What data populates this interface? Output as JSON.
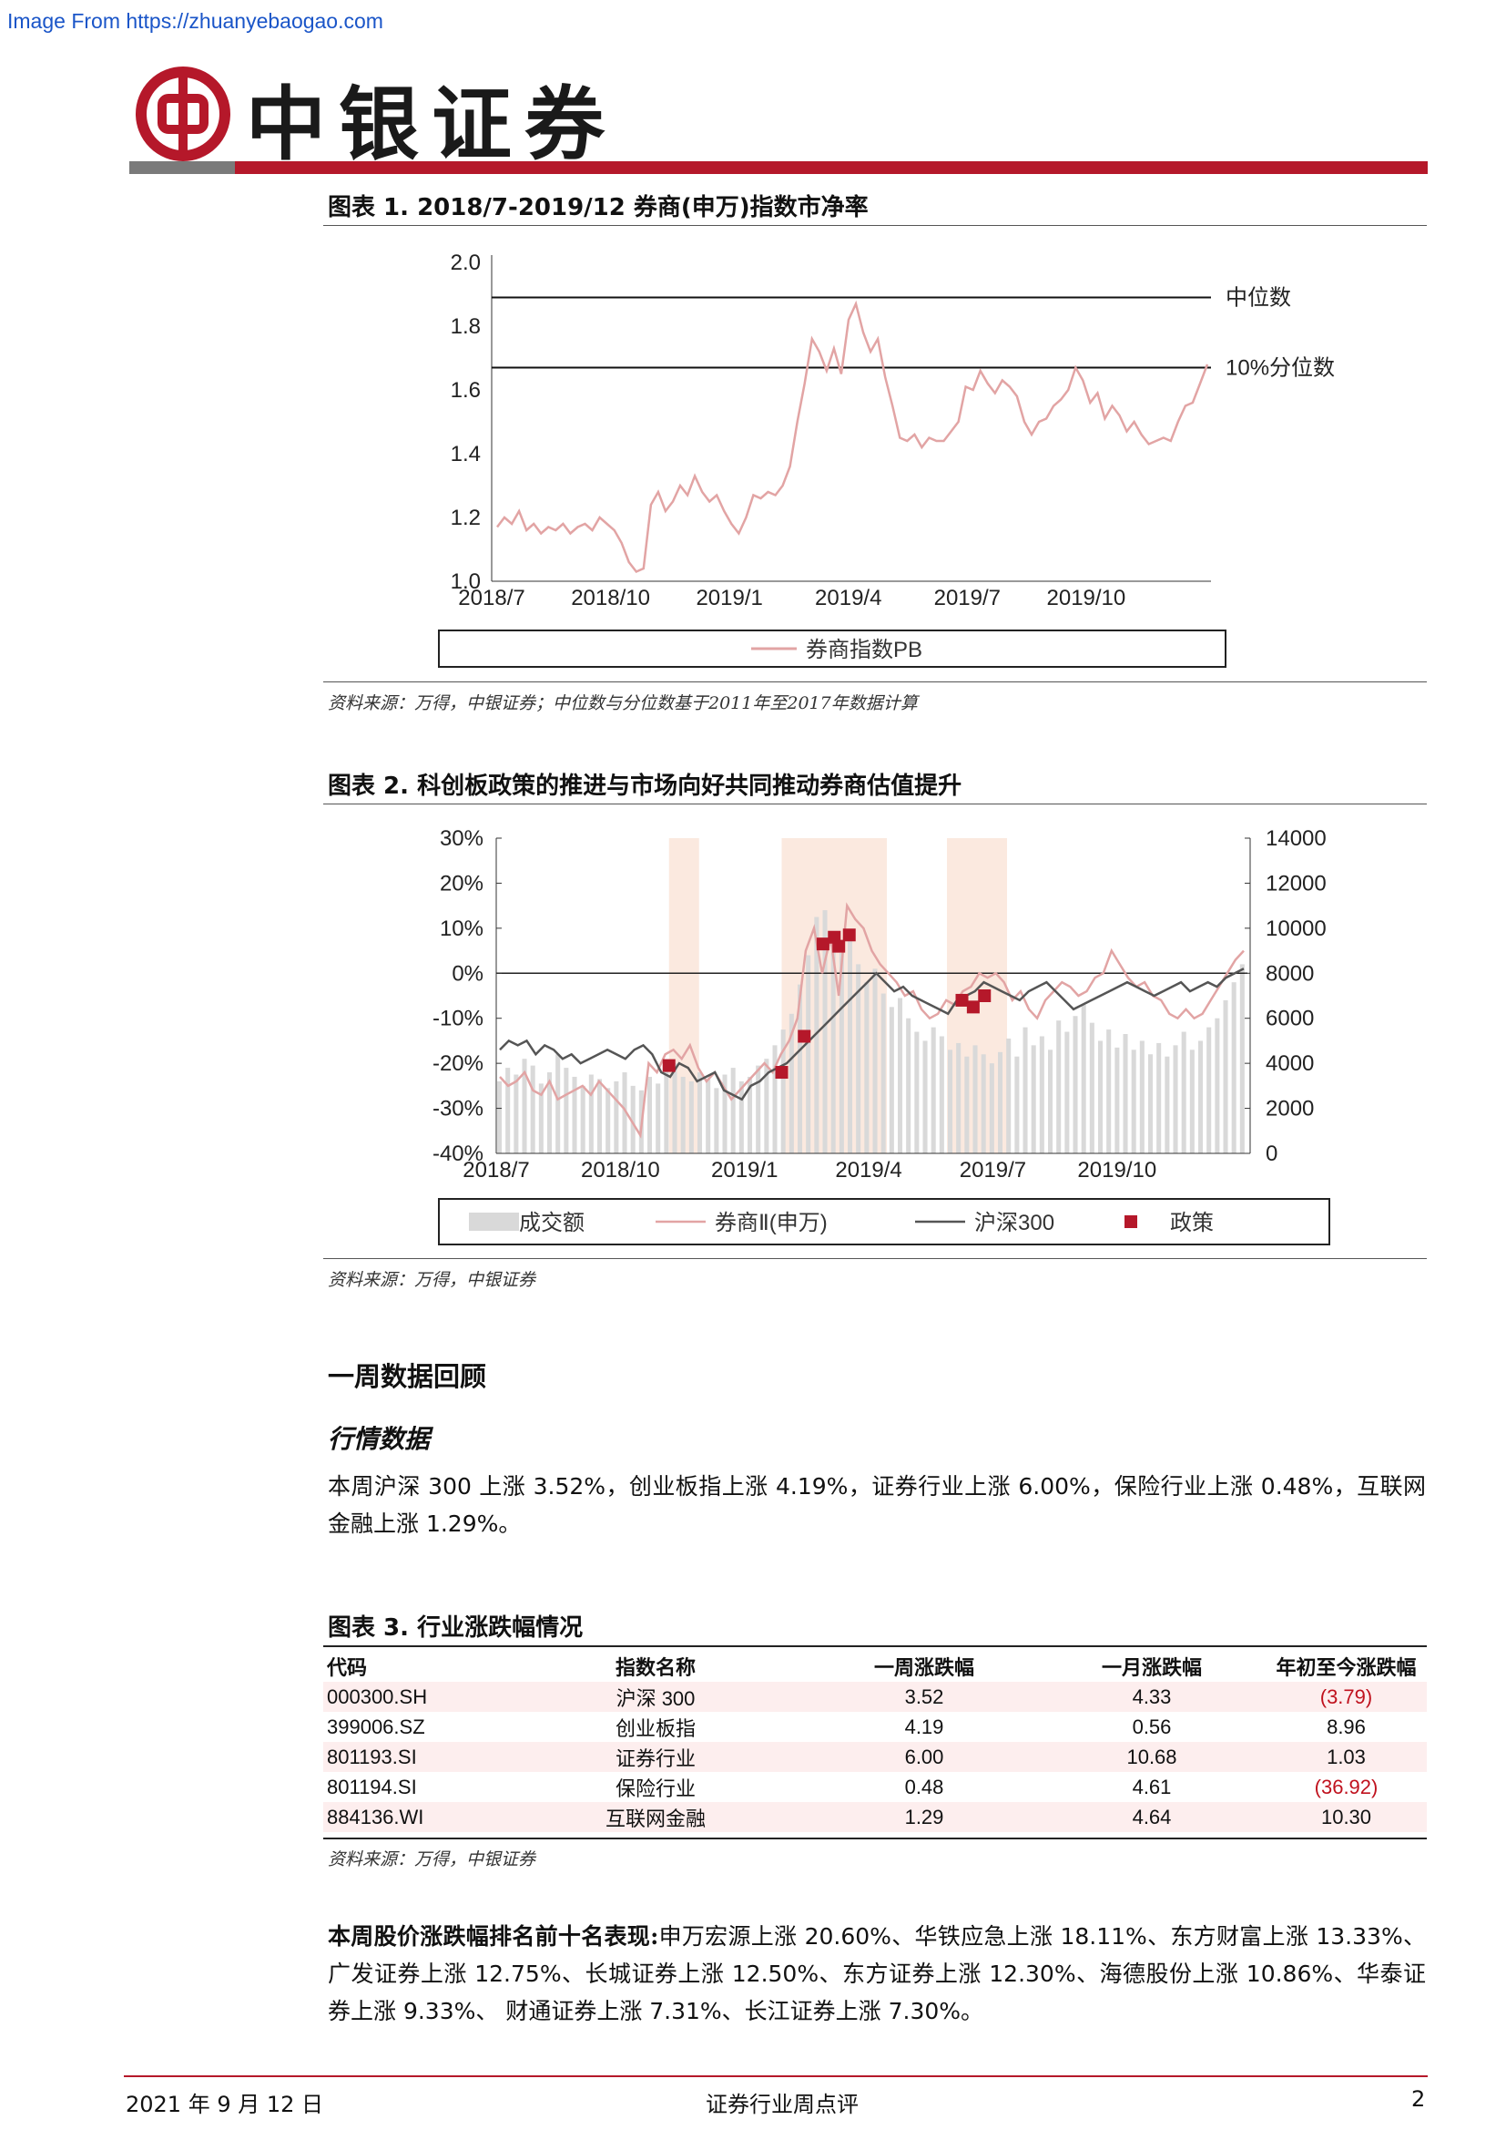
{
  "watermark": "Image From https://zhuanyebaogao.com",
  "brand": {
    "name": "中银证券",
    "logo": "bank-of-china-logo"
  },
  "figure1": {
    "title": "图表 1. 2018/7-2019/12 券商(申万)指数市净率",
    "source": "资料来源：万得，中银证券；中位数与分位数基于2011年至2017年数据计算",
    "chart_data": {
      "type": "line",
      "xlabels": [
        "2018/7",
        "2018/10",
        "2019/1",
        "2019/4",
        "2019/7",
        "2019/10"
      ],
      "ylim": [
        1.0,
        2.0
      ],
      "yticks": [
        "2.0",
        "1.8",
        "1.6",
        "1.4",
        "1.2",
        "1.0"
      ],
      "reference_lines": [
        {
          "label": "中位数",
          "value": 1.89
        },
        {
          "label": "10%分位数",
          "value": 1.67
        }
      ],
      "series": [
        {
          "name": "券商指数PB",
          "color": "#e2a4a4",
          "values": [
            1.17,
            1.2,
            1.18,
            1.22,
            1.16,
            1.18,
            1.15,
            1.17,
            1.16,
            1.18,
            1.15,
            1.17,
            1.18,
            1.16,
            1.2,
            1.18,
            1.16,
            1.12,
            1.06,
            1.03,
            1.04,
            1.24,
            1.28,
            1.22,
            1.25,
            1.3,
            1.27,
            1.33,
            1.28,
            1.25,
            1.27,
            1.22,
            1.18,
            1.15,
            1.2,
            1.27,
            1.26,
            1.28,
            1.27,
            1.3,
            1.36,
            1.5,
            1.62,
            1.76,
            1.72,
            1.66,
            1.73,
            1.65,
            1.82,
            1.87,
            1.78,
            1.72,
            1.76,
            1.64,
            1.55,
            1.45,
            1.44,
            1.46,
            1.42,
            1.45,
            1.44,
            1.44,
            1.47,
            1.5,
            1.61,
            1.6,
            1.66,
            1.62,
            1.59,
            1.63,
            1.61,
            1.58,
            1.5,
            1.46,
            1.5,
            1.51,
            1.55,
            1.57,
            1.6,
            1.67,
            1.63,
            1.56,
            1.59,
            1.51,
            1.55,
            1.52,
            1.47,
            1.5,
            1.46,
            1.43,
            1.44,
            1.45,
            1.44,
            1.5,
            1.55,
            1.56,
            1.62,
            1.68
          ]
        }
      ],
      "legend": "bottom-center"
    }
  },
  "figure2": {
    "title": "图表 2. 科创板政策的推进与市场向好共同推动券商估值提升",
    "source": "资料来源：万得，中银证券",
    "chart_data": {
      "type": "line",
      "xlabels": [
        "2018/7",
        "2018/10",
        "2019/1",
        "2019/4",
        "2019/7",
        "2019/10"
      ],
      "left_axis": {
        "ylim": [
          -40,
          30
        ],
        "ticks": [
          "30%",
          "20%",
          "10%",
          "0%",
          "-10%",
          "-20%",
          "-30%",
          "-40%"
        ]
      },
      "right_axis": {
        "ylim": [
          0,
          14000
        ],
        "ticks": [
          "14000",
          "12000",
          "10000",
          "8000",
          "6000",
          "4000",
          "2000",
          "0"
        ]
      },
      "legend_items": [
        {
          "name": "成交额",
          "color": "#d9d9d9",
          "kind": "bar"
        },
        {
          "name": "券商Ⅱ(申万)",
          "color": "#e2a4a4",
          "kind": "line"
        },
        {
          "name": "沪深300",
          "color": "#555555",
          "kind": "line"
        },
        {
          "name": "政策",
          "color": "#b5182a",
          "kind": "marker"
        }
      ],
      "shaded_periods": [
        [
          0.23,
          0.27
        ],
        [
          0.38,
          0.52
        ],
        [
          0.6,
          0.68
        ]
      ],
      "broker_series": [
        -23,
        -25,
        -24,
        -22,
        -26,
        -27,
        -24,
        -28,
        -27,
        -26,
        -25,
        -27,
        -24,
        -26,
        -28,
        -30,
        -33,
        -36,
        -20,
        -22,
        -18,
        -17,
        -19,
        -16,
        -21,
        -24,
        -22,
        -25,
        -28,
        -26,
        -24,
        -22,
        -20,
        -22,
        -18,
        -15,
        -10,
        5,
        10,
        0,
        8,
        -5,
        15,
        12,
        10,
        5,
        2,
        0,
        -2,
        -5,
        -4,
        -8,
        -10,
        -9,
        -6,
        -7,
        -4,
        -3,
        0,
        -1,
        0,
        -2,
        -6,
        -4,
        -8,
        -10,
        -6,
        -4,
        -2,
        -3,
        -5,
        -4,
        -1,
        0,
        5,
        2,
        -1,
        -3,
        -2,
        -5,
        -6,
        -9,
        -10,
        -8,
        -10,
        -9,
        -6,
        -3,
        0,
        3,
        5
      ],
      "hs300_series": [
        -17,
        -15,
        -16,
        -15,
        -18,
        -16,
        -17,
        -19,
        -18,
        -20,
        -19,
        -18,
        -17,
        -18,
        -19,
        -17,
        -16,
        -18,
        -22,
        -23,
        -20,
        -21,
        -24,
        -23,
        -22,
        -26,
        -27,
        -28,
        -25,
        -24,
        -22,
        -21,
        -20,
        -18,
        -16,
        -14,
        -12,
        -10,
        -8,
        -6,
        -4,
        -2,
        0,
        -2,
        -4,
        -3,
        -5,
        -6,
        -7,
        -8,
        -9,
        -6,
        -5,
        -4,
        -2,
        -3,
        -4,
        -5,
        -6,
        -4,
        -3,
        -2,
        -4,
        -6,
        -8,
        -7,
        -6,
        -5,
        -4,
        -3,
        -2,
        -3,
        -4,
        -5,
        -4,
        -3,
        -2,
        -4,
        -3,
        -2,
        -3,
        -1,
        0,
        1
      ],
      "policy_points": [
        [
          0.23,
          -20.5
        ],
        [
          0.38,
          -22
        ],
        [
          0.41,
          -14
        ],
        [
          0.435,
          6.5
        ],
        [
          0.45,
          8
        ],
        [
          0.456,
          6
        ],
        [
          0.47,
          8.5
        ],
        [
          0.62,
          -6
        ],
        [
          0.635,
          -7.5
        ],
        [
          0.65,
          -5
        ]
      ],
      "volume_levels": [
        3.2,
        3.8,
        3.5,
        4.2,
        3.9,
        3.1,
        3.6,
        4.4,
        3.8,
        3.4,
        3.0,
        3.5,
        3.3,
        2.9,
        3.2,
        3.6,
        3.0,
        2.8,
        3.4,
        3.1,
        3.7,
        4.0,
        3.4,
        3.2,
        3.6,
        3.3,
        2.9,
        3.5,
        3.8,
        3.2,
        3.4,
        3.9,
        4.2,
        4.8,
        5.5,
        6.2,
        7.5,
        8.8,
        10.5,
        10.8,
        9.6,
        8.9,
        9.8,
        8.4,
        7.6,
        8.2,
        7.1,
        6.5,
        6.9,
        6.0,
        5.4,
        5.0,
        5.6,
        5.2,
        4.6,
        4.9,
        4.3,
        4.8,
        4.4,
        4.0,
        4.5,
        5.1,
        4.3,
        5.6,
        4.8,
        5.2,
        4.6,
        5.9,
        5.4,
        6.1,
        6.6,
        5.8,
        5.0,
        5.5,
        4.7,
        5.3,
        4.6,
        5.0,
        4.4,
        4.9,
        4.3,
        4.8,
        5.4,
        4.6,
        5.0,
        5.6,
        6.0,
        6.8,
        7.6,
        8.4
      ]
    }
  },
  "section": {
    "title": "一周数据回顾",
    "subtitle": "行情数据"
  },
  "paragraph1": "本周沪深 300 上涨 3.52%，创业板指上涨 4.19%，证券行业上涨 6.00%，保险行业上涨 0.48%，互联网金融上涨 1.29%。",
  "figure3": {
    "title": "图表 3. 行业涨跌幅情况",
    "headers": [
      "代码",
      "指数名称",
      "一周涨跌幅",
      "一月涨跌幅",
      "年初至今涨跌幅"
    ],
    "rows": [
      [
        "000300.SH",
        "沪深 300",
        "3.52",
        "4.33",
        "(3.79)"
      ],
      [
        "399006.SZ",
        "创业板指",
        "4.19",
        "0.56",
        "8.96"
      ],
      [
        "801193.SI",
        "证券行业",
        "6.00",
        "10.68",
        "1.03"
      ],
      [
        "801194.SI",
        "保险行业",
        "0.48",
        "4.61",
        "(36.92)"
      ],
      [
        "884136.WI",
        "互联网金融",
        "1.29",
        "4.64",
        "10.30"
      ]
    ],
    "source": "资料来源：万得，中银证券"
  },
  "paragraph2": {
    "lead": "本周股价涨跌幅排名前十名表现:",
    "body": "申万宏源上涨 20.60%、华铁应急上涨 18.11%、东方财富上涨 13.33%、广发证券上涨 12.75%、长城证券上涨 12.50%、东方证券上涨 12.30%、海德股份上涨 10.86%、华泰证券上涨 9.33%、 财通证券上涨 7.31%、长江证券上涨 7.30%。"
  },
  "footer": {
    "date": "2021 年 9 月 12 日",
    "title": "证券行业周点评",
    "page": "2"
  },
  "colors": {
    "brand_red": "#b5182a",
    "pink_line": "#e2a4a4",
    "dark_line": "#555555",
    "volume": "#d9d9d9",
    "shade": "#fbe9df",
    "table_shade": "#fdeeee",
    "negative": "#c0121e"
  }
}
